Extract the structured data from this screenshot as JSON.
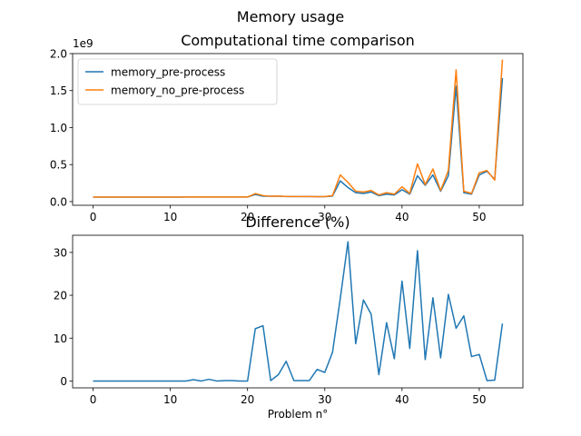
{
  "figure": {
    "suptitle": "Memory usage"
  },
  "chart_data": [
    {
      "type": "line",
      "title": "Computational time comparison",
      "offset_label": "1e9",
      "xlabel": "",
      "ylabel": "",
      "xlim": [
        -2.65,
        55.65
      ],
      "ylim": [
        -0.05,
        2.0
      ],
      "xticks": [
        0,
        10,
        20,
        30,
        40,
        50
      ],
      "yticks": [
        0.0,
        0.5,
        1.0,
        1.5,
        2.0
      ],
      "ytick_labels": [
        "0.0",
        "0.5",
        "1.0",
        "1.5",
        "2.0"
      ],
      "legend": "upper left",
      "x": [
        0,
        1,
        2,
        3,
        4,
        5,
        6,
        7,
        8,
        9,
        10,
        11,
        12,
        13,
        14,
        15,
        16,
        17,
        18,
        19,
        20,
        21,
        22,
        23,
        24,
        25,
        26,
        27,
        28,
        29,
        30,
        31,
        32,
        33,
        34,
        35,
        36,
        37,
        38,
        39,
        40,
        41,
        42,
        43,
        44,
        45,
        46,
        47,
        48,
        49,
        50,
        51,
        52,
        53
      ],
      "series": [
        {
          "name": "memory_pre-process",
          "color": "#1f77b4",
          "values": [
            0.06,
            0.06,
            0.06,
            0.06,
            0.06,
            0.06,
            0.06,
            0.06,
            0.06,
            0.06,
            0.06,
            0.06,
            0.062,
            0.062,
            0.062,
            0.062,
            0.062,
            0.062,
            0.062,
            0.062,
            0.062,
            0.095,
            0.072,
            0.072,
            0.072,
            0.068,
            0.068,
            0.068,
            0.068,
            0.066,
            0.066,
            0.075,
            0.28,
            0.19,
            0.12,
            0.11,
            0.13,
            0.08,
            0.1,
            0.09,
            0.16,
            0.1,
            0.35,
            0.22,
            0.36,
            0.14,
            0.35,
            1.56,
            0.12,
            0.1,
            0.36,
            0.41,
            0.3,
            1.67
          ]
        },
        {
          "name": "memory_no_pre-process",
          "color": "#ff7f0e",
          "values": [
            0.06,
            0.06,
            0.06,
            0.06,
            0.06,
            0.06,
            0.06,
            0.06,
            0.06,
            0.06,
            0.06,
            0.06,
            0.062,
            0.062,
            0.062,
            0.062,
            0.062,
            0.062,
            0.062,
            0.062,
            0.062,
            0.108,
            0.081,
            0.072,
            0.075,
            0.07,
            0.068,
            0.068,
            0.068,
            0.067,
            0.068,
            0.08,
            0.36,
            0.26,
            0.14,
            0.13,
            0.15,
            0.09,
            0.12,
            0.1,
            0.2,
            0.11,
            0.51,
            0.23,
            0.44,
            0.15,
            0.42,
            1.78,
            0.14,
            0.11,
            0.39,
            0.42,
            0.29,
            1.92
          ]
        }
      ]
    },
    {
      "type": "line",
      "title": "Difference (%)",
      "xlabel": "Problem n°",
      "ylabel": "",
      "xlim": [
        -2.65,
        55.65
      ],
      "ylim": [
        -1.6,
        34.0
      ],
      "xticks": [
        0,
        10,
        20,
        30,
        40,
        50
      ],
      "yticks": [
        0,
        10,
        20,
        30
      ],
      "x": [
        0,
        1,
        2,
        3,
        4,
        5,
        6,
        7,
        8,
        9,
        10,
        11,
        12,
        13,
        14,
        15,
        16,
        17,
        18,
        19,
        20,
        21,
        22,
        23,
        24,
        25,
        26,
        27,
        28,
        29,
        30,
        31,
        32,
        33,
        34,
        35,
        36,
        37,
        38,
        39,
        40,
        41,
        42,
        43,
        44,
        45,
        46,
        47,
        48,
        49,
        50,
        51,
        52,
        53
      ],
      "series": [
        {
          "color": "#1f77b4",
          "values": [
            0,
            0,
            0,
            0,
            0,
            0,
            0,
            0,
            0,
            0,
            0,
            0,
            0,
            0.3,
            0,
            0.4,
            0,
            0.1,
            0.1,
            0,
            0,
            12.2,
            12.9,
            0.1,
            1.5,
            4.6,
            0.1,
            0.1,
            0.1,
            2.7,
            2.0,
            6.7,
            19.2,
            32.5,
            8.7,
            18.9,
            15.6,
            1.5,
            13.6,
            5.2,
            23.3,
            7.6,
            30.4,
            5.0,
            19.4,
            5.4,
            20.2,
            12.3,
            15.2,
            5.7,
            6.2,
            0.1,
            0.2,
            13.4
          ]
        }
      ]
    }
  ]
}
